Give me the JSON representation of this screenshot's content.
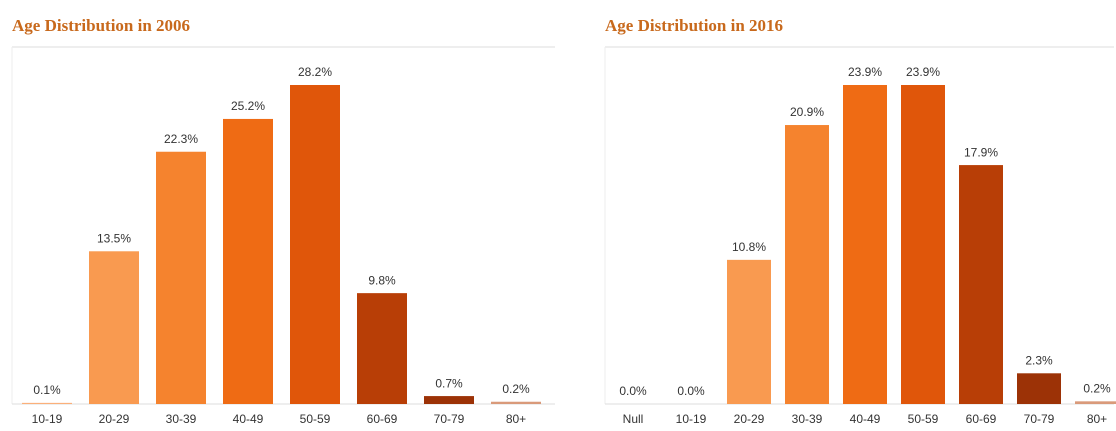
{
  "chart_data": [
    {
      "type": "bar",
      "title": "Age Distribution in 2006",
      "categories": [
        "10-19",
        "20-29",
        "30-39",
        "40-49",
        "50-59",
        "60-69",
        "70-79",
        "80+"
      ],
      "values": [
        0.1,
        13.5,
        22.3,
        25.2,
        28.2,
        9.8,
        0.7,
        0.2
      ],
      "value_labels": [
        "0.1%",
        "13.5%",
        "22.3%",
        "25.2%",
        "28.2%",
        "9.8%",
        "0.7%",
        "0.2%"
      ],
      "colors": [
        "#fbb07a",
        "#f99a50",
        "#f5832e",
        "#ef6b14",
        "#e0560a",
        "#b83e06",
        "#9c3206",
        "#d99a7a"
      ]
    },
    {
      "type": "bar",
      "title": "Age Distribution in 2016",
      "categories": [
        "Null",
        "10-19",
        "20-29",
        "30-39",
        "40-49",
        "50-59",
        "60-69",
        "70-79",
        "80+"
      ],
      "values": [
        0.0,
        0.0,
        10.8,
        20.9,
        23.9,
        23.9,
        17.9,
        2.3,
        0.2
      ],
      "value_labels": [
        "0.0%",
        "0.0%",
        "10.8%",
        "20.9%",
        "23.9%",
        "23.9%",
        "17.9%",
        "2.3%",
        "0.2%"
      ],
      "colors": [
        "#fbb07a",
        "#fbb07a",
        "#f99a50",
        "#f5832e",
        "#ef6b14",
        "#e0560a",
        "#b83e06",
        "#9c3206",
        "#d99a7a"
      ]
    }
  ]
}
